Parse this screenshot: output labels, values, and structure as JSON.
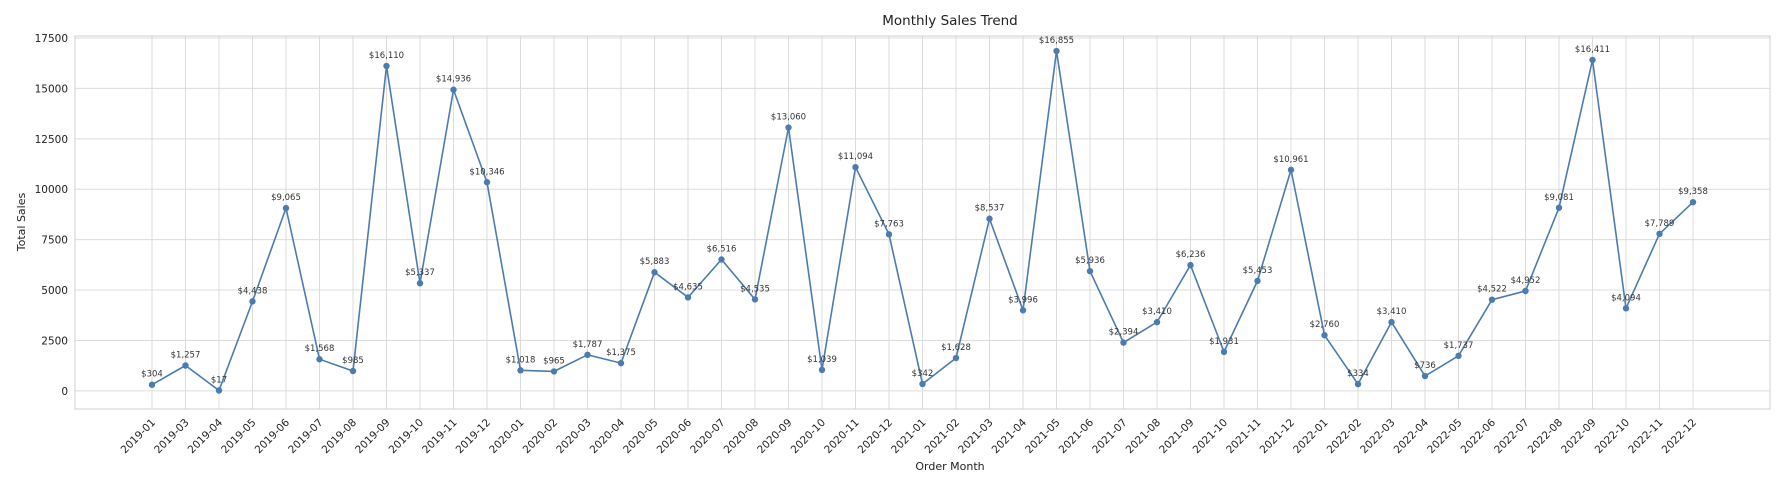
{
  "chart_data": {
    "type": "line",
    "title": "Monthly Sales Trend",
    "xlabel": "Order Month",
    "ylabel": "Total Sales",
    "ylim": [
      -900,
      17600
    ],
    "yticks": [
      0,
      2500,
      5000,
      7500,
      10000,
      12500,
      15000,
      17500
    ],
    "ytick_labels": [
      "0",
      "2500",
      "5000",
      "7500",
      "10000",
      "12500",
      "15000",
      "17500"
    ],
    "grid": true,
    "color": "#4c7bb0",
    "x": [
      "2019-01",
      "2019-03",
      "2019-04",
      "2019-05",
      "2019-06",
      "2019-07",
      "2019-08",
      "2019-09",
      "2019-10",
      "2019-11",
      "2019-12",
      "2020-01",
      "2020-02",
      "2020-03",
      "2020-04",
      "2020-05",
      "2020-06",
      "2020-07",
      "2020-08",
      "2020-09",
      "2020-10",
      "2020-11",
      "2020-12",
      "2021-01",
      "2021-02",
      "2021-03",
      "2021-04",
      "2021-05",
      "2021-06",
      "2021-07",
      "2021-08",
      "2021-09",
      "2021-10",
      "2021-11",
      "2021-12",
      "2022-01",
      "2022-02",
      "2022-03",
      "2022-04",
      "2022-05",
      "2022-06",
      "2022-07",
      "2022-08",
      "2022-09",
      "2022-10",
      "2022-11",
      "2022-12"
    ],
    "values": [
      304,
      1257,
      17,
      4438,
      9065,
      1568,
      985,
      16110,
      5337,
      14936,
      10346,
      1018,
      965,
      1787,
      1375,
      5883,
      4635,
      6516,
      4535,
      13060,
      1039,
      11094,
      7763,
      342,
      1628,
      8537,
      3996,
      16855,
      5936,
      2394,
      3410,
      6236,
      1931,
      5453,
      10961,
      2760,
      334,
      3410,
      736,
      1737,
      4522,
      4952,
      9081,
      16411,
      4094,
      7789,
      9358
    ],
    "data_labels": [
      "$304",
      "$1,257",
      "$17",
      "$4,438",
      "$9,065",
      "$1,568",
      "$985",
      "$16,110",
      "$5,337",
      "$14,936",
      "$10,346",
      "$1,018",
      "$965",
      "$1,787",
      "$1,375",
      "$5,883",
      "$4,635",
      "$6,516",
      "$4,535",
      "$13,060",
      "$1,039",
      "$11,094",
      "$7,763",
      "$342",
      "$1,628",
      "$8,537",
      "$3,996",
      "$16,855",
      "$5,936",
      "$2,394",
      "$3,410",
      "$6,236",
      "$1,931",
      "$5,453",
      "$10,961",
      "$2,760",
      "$334",
      "$3,410",
      "$736",
      "$1,737",
      "$4,522",
      "$4,952",
      "$9,081",
      "$16,411",
      "$4,094",
      "$7,789",
      "$9,358"
    ]
  }
}
